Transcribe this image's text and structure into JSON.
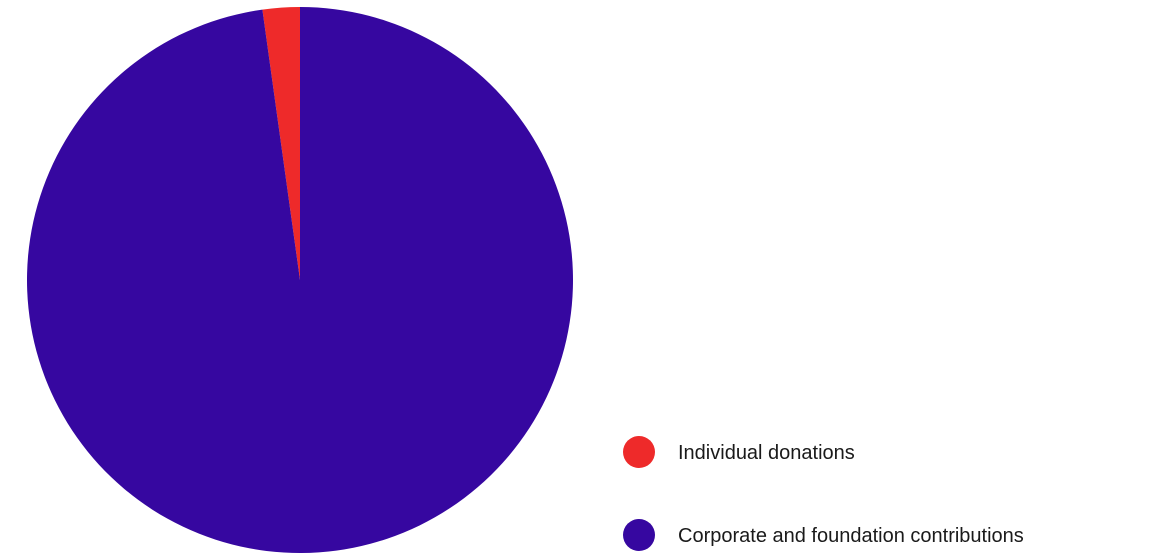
{
  "chart_data": {
    "type": "pie",
    "title": "",
    "slices": [
      {
        "label": "Individual donations",
        "value": 2.2,
        "color": "#ee2a2a"
      },
      {
        "label": "Corporate and foundation contributions",
        "value": 97.8,
        "color": "#3607a0"
      }
    ],
    "legend": {
      "placement": "bottom-right",
      "marker": "circle"
    }
  }
}
